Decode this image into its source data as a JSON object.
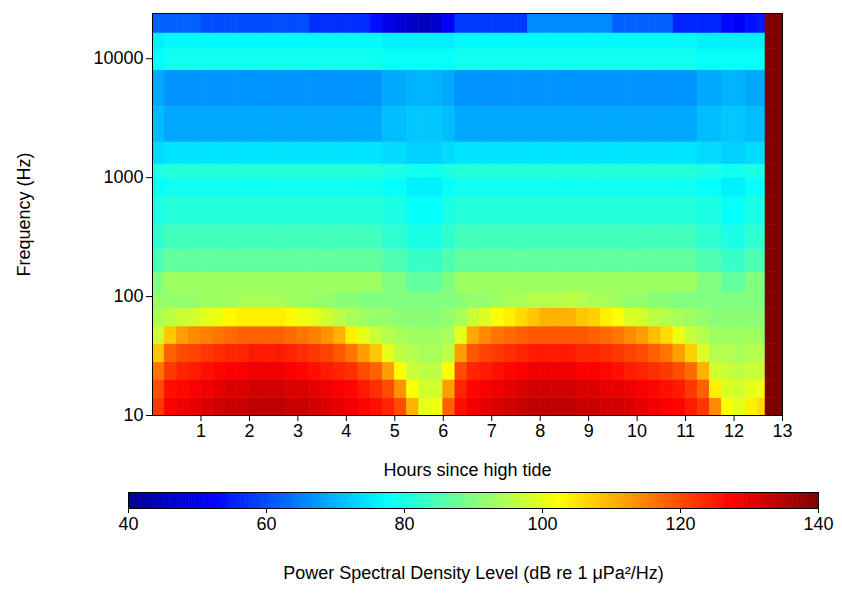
{
  "chart_data": {
    "type": "heatmap",
    "xlabel": "Hours since high tide",
    "ylabel": "Frequency (Hz)",
    "log": "y",
    "xlim": [
      0,
      13
    ],
    "xticks": [
      1,
      2,
      3,
      4,
      5,
      6,
      7,
      8,
      9,
      10,
      11,
      12,
      13
    ],
    "ylim": [
      10,
      24000
    ],
    "yticks": [
      10,
      100,
      1000,
      10000
    ],
    "x_bins": [
      0,
      0.25,
      0.5,
      0.75,
      1,
      1.25,
      1.5,
      1.75,
      2,
      2.25,
      2.5,
      2.75,
      3,
      3.25,
      3.5,
      3.75,
      4,
      4.25,
      4.5,
      4.75,
      5,
      5.25,
      5.5,
      5.75,
      6,
      6.25,
      6.5,
      6.75,
      7,
      7.25,
      7.5,
      7.75,
      8,
      8.25,
      8.5,
      8.75,
      9,
      9.25,
      9.5,
      9.75,
      10,
      10.25,
      10.5,
      10.75,
      11,
      11.25,
      11.5,
      11.75,
      12,
      12.25,
      12.5,
      12.65,
      13
    ],
    "y_bins": [
      10,
      14,
      20,
      28,
      40,
      56,
      80,
      110,
      160,
      250,
      400,
      700,
      1000,
      1300,
      2000,
      4000,
      8000,
      12000,
      16500,
      24000
    ],
    "values": [
      [
        122,
        128,
        129,
        130,
        131,
        132,
        133,
        133,
        134,
        134,
        134,
        133,
        133,
        132,
        131,
        130,
        129,
        127,
        126,
        124,
        120,
        110,
        100,
        101,
        118,
        126,
        129,
        130,
        131,
        132,
        133,
        134,
        134,
        134,
        134,
        133,
        133,
        132,
        132,
        131,
        130,
        129,
        128,
        127,
        125,
        122,
        114,
        102,
        100,
        104,
        106,
        140
      ],
      [
        120,
        126,
        127,
        128,
        129,
        130,
        131,
        131,
        132,
        132,
        132,
        131,
        131,
        130,
        129,
        128,
        127,
        125,
        123,
        120,
        113,
        102,
        98,
        98,
        112,
        124,
        127,
        128,
        129,
        130,
        131,
        132,
        132,
        132,
        132,
        131,
        131,
        130,
        130,
        129,
        128,
        127,
        126,
        125,
        122,
        118,
        104,
        99,
        98,
        100,
        101,
        140
      ],
      [
        116,
        122,
        124,
        125,
        126,
        127,
        128,
        128,
        129,
        129,
        129,
        128,
        127,
        126,
        125,
        124,
        123,
        120,
        118,
        112,
        102,
        97,
        96,
        96,
        102,
        120,
        124,
        125,
        126,
        127,
        128,
        129,
        129,
        129,
        129,
        128,
        128,
        127,
        126,
        125,
        124,
        123,
        122,
        120,
        117,
        110,
        98,
        97,
        96,
        97,
        97,
        140
      ],
      [
        108,
        118,
        120,
        121,
        122,
        123,
        124,
        124,
        125,
        125,
        125,
        124,
        123,
        122,
        121,
        119,
        116,
        112,
        108,
        100,
        96,
        95,
        94,
        94,
        96,
        112,
        119,
        121,
        122,
        123,
        124,
        125,
        125,
        125,
        125,
        124,
        124,
        123,
        122,
        121,
        120,
        118,
        116,
        112,
        107,
        99,
        95,
        95,
        94,
        95,
        95,
        140
      ],
      [
        98,
        108,
        112,
        114,
        115,
        116,
        117,
        118,
        118,
        118,
        118,
        117,
        116,
        115,
        113,
        110,
        104,
        100,
        97,
        95,
        94,
        93,
        93,
        93,
        94,
        100,
        111,
        114,
        116,
        117,
        118,
        119,
        119,
        119,
        119,
        119,
        118,
        117,
        116,
        114,
        112,
        109,
        106,
        101,
        97,
        95,
        93,
        93,
        93,
        93,
        93,
        140
      ],
      [
        94,
        96,
        97,
        98,
        100,
        101,
        103,
        104,
        104,
        104,
        104,
        103,
        101,
        100,
        98,
        96,
        94,
        93,
        92,
        92,
        91,
        91,
        91,
        91,
        92,
        94,
        97,
        99,
        102,
        104,
        106,
        108,
        110,
        110,
        110,
        108,
        107,
        104,
        102,
        99,
        98,
        96,
        95,
        94,
        93,
        92,
        91,
        91,
        91,
        91,
        91,
        140
      ],
      [
        92,
        92,
        92,
        92,
        93,
        93,
        93,
        94,
        94,
        94,
        94,
        93,
        93,
        92,
        92,
        91,
        91,
        90,
        90,
        90,
        90,
        90,
        90,
        90,
        90,
        91,
        92,
        92,
        93,
        94,
        94,
        95,
        95,
        95,
        96,
        95,
        94,
        94,
        93,
        92,
        92,
        91,
        91,
        90,
        90,
        90,
        90,
        90,
        90,
        90,
        90,
        140
      ],
      [
        90,
        93,
        93,
        93,
        93,
        93,
        93,
        93,
        93,
        93,
        93,
        93,
        93,
        93,
        93,
        93,
        93,
        93,
        93,
        90,
        90,
        87,
        87,
        87,
        90,
        93,
        93,
        93,
        93,
        93,
        93,
        93,
        93,
        93,
        93,
        93,
        93,
        93,
        93,
        93,
        93,
        93,
        93,
        93,
        93,
        90,
        90,
        87,
        87,
        90,
        90,
        140
      ],
      [
        85,
        87,
        87,
        87,
        87,
        87,
        87,
        87,
        87,
        87,
        87,
        87,
        87,
        87,
        87,
        87,
        87,
        87,
        87,
        85,
        85,
        83,
        83,
        83,
        85,
        87,
        87,
        87,
        87,
        87,
        87,
        87,
        87,
        87,
        87,
        87,
        87,
        87,
        87,
        87,
        87,
        87,
        87,
        87,
        87,
        85,
        85,
        83,
        83,
        85,
        85,
        140
      ],
      [
        82,
        84,
        84,
        84,
        84,
        84,
        84,
        84,
        84,
        84,
        84,
        84,
        84,
        84,
        84,
        84,
        84,
        84,
        84,
        82,
        82,
        80,
        80,
        80,
        82,
        84,
        84,
        84,
        84,
        84,
        84,
        84,
        84,
        84,
        84,
        84,
        84,
        84,
        84,
        84,
        84,
        84,
        84,
        84,
        84,
        82,
        82,
        80,
        80,
        82,
        82,
        140
      ],
      [
        80,
        81,
        81,
        81,
        81,
        81,
        81,
        81,
        81,
        81,
        81,
        81,
        81,
        81,
        81,
        81,
        81,
        81,
        81,
        80,
        80,
        78,
        78,
        78,
        80,
        81,
        81,
        81,
        81,
        81,
        81,
        81,
        81,
        81,
        81,
        81,
        81,
        81,
        81,
        81,
        81,
        81,
        81,
        81,
        81,
        80,
        80,
        78,
        78,
        80,
        80,
        140
      ],
      [
        78,
        79,
        79,
        79,
        79,
        79,
        79,
        79,
        79,
        79,
        79,
        79,
        79,
        79,
        79,
        79,
        79,
        79,
        79,
        78,
        78,
        76,
        76,
        76,
        78,
        79,
        79,
        79,
        79,
        79,
        79,
        79,
        79,
        79,
        79,
        79,
        79,
        79,
        79,
        79,
        79,
        79,
        79,
        79,
        79,
        78,
        78,
        76,
        76,
        78,
        78,
        140
      ],
      [
        80,
        81,
        81,
        81,
        81,
        81,
        81,
        81,
        81,
        81,
        81,
        81,
        81,
        81,
        81,
        81,
        81,
        81,
        81,
        80,
        80,
        79,
        79,
        79,
        80,
        81,
        81,
        81,
        81,
        81,
        81,
        81,
        81,
        81,
        81,
        81,
        81,
        81,
        81,
        81,
        81,
        81,
        81,
        81,
        81,
        80,
        80,
        79,
        79,
        80,
        80,
        140
      ],
      [
        74,
        75,
        75,
        75,
        75,
        75,
        75,
        75,
        75,
        75,
        75,
        75,
        75,
        75,
        75,
        75,
        75,
        75,
        75,
        74,
        74,
        73,
        73,
        73,
        74,
        75,
        75,
        75,
        75,
        75,
        75,
        75,
        75,
        75,
        75,
        75,
        75,
        75,
        75,
        75,
        75,
        75,
        75,
        75,
        75,
        74,
        74,
        73,
        73,
        74,
        74,
        140
      ],
      [
        71,
        69,
        69,
        69,
        69,
        69,
        69,
        69,
        69,
        69,
        69,
        69,
        69,
        69,
        69,
        69,
        69,
        69,
        69,
        71,
        71,
        72,
        72,
        72,
        71,
        69,
        69,
        69,
        69,
        69,
        69,
        69,
        69,
        69,
        69,
        69,
        69,
        69,
        69,
        69,
        69,
        69,
        69,
        69,
        69,
        71,
        71,
        72,
        72,
        71,
        71,
        140
      ],
      [
        69,
        67,
        67,
        67,
        67,
        67,
        67,
        67,
        67,
        67,
        67,
        67,
        67,
        67,
        67,
        67,
        67,
        67,
        67,
        69,
        69,
        70,
        70,
        70,
        69,
        67,
        67,
        67,
        67,
        67,
        67,
        67,
        67,
        67,
        67,
        67,
        67,
        67,
        67,
        67,
        67,
        67,
        67,
        67,
        67,
        69,
        69,
        70,
        70,
        69,
        69,
        140
      ],
      [
        78,
        79,
        79,
        79,
        79,
        79,
        79,
        79,
        79,
        79,
        79,
        79,
        79,
        79,
        79,
        79,
        79,
        79,
        79,
        78,
        78,
        78,
        78,
        78,
        78,
        79,
        79,
        79,
        79,
        79,
        79,
        79,
        79,
        79,
        79,
        79,
        79,
        79,
        79,
        79,
        79,
        79,
        79,
        79,
        79,
        78,
        78,
        78,
        78,
        78,
        78,
        140
      ],
      [
        76,
        77,
        77,
        77,
        77,
        77,
        77,
        77,
        77,
        77,
        77,
        77,
        77,
        77,
        77,
        77,
        77,
        77,
        77,
        76,
        76,
        76,
        76,
        76,
        76,
        77,
        77,
        77,
        77,
        77,
        77,
        77,
        77,
        77,
        77,
        77,
        77,
        77,
        77,
        77,
        77,
        77,
        77,
        77,
        77,
        76,
        76,
        76,
        76,
        76,
        76,
        140
      ],
      [
        62,
        62,
        62,
        62,
        60,
        60,
        60,
        60,
        60,
        60,
        60,
        60,
        60,
        57,
        57,
        57,
        57,
        57,
        54,
        50,
        48,
        46,
        45,
        47,
        52,
        58,
        58,
        58,
        58,
        58,
        58,
        66,
        66,
        66,
        66,
        66,
        66,
        66,
        62,
        62,
        62,
        62,
        62,
        56,
        56,
        56,
        56,
        53,
        52,
        54,
        55,
        140
      ]
    ],
    "colorbar": {
      "label": "Power Spectral Density Level (dB re 1 μPa²/Hz)",
      "lim": [
        40,
        140
      ],
      "ticks": [
        40,
        60,
        80,
        100,
        120,
        140
      ]
    }
  }
}
